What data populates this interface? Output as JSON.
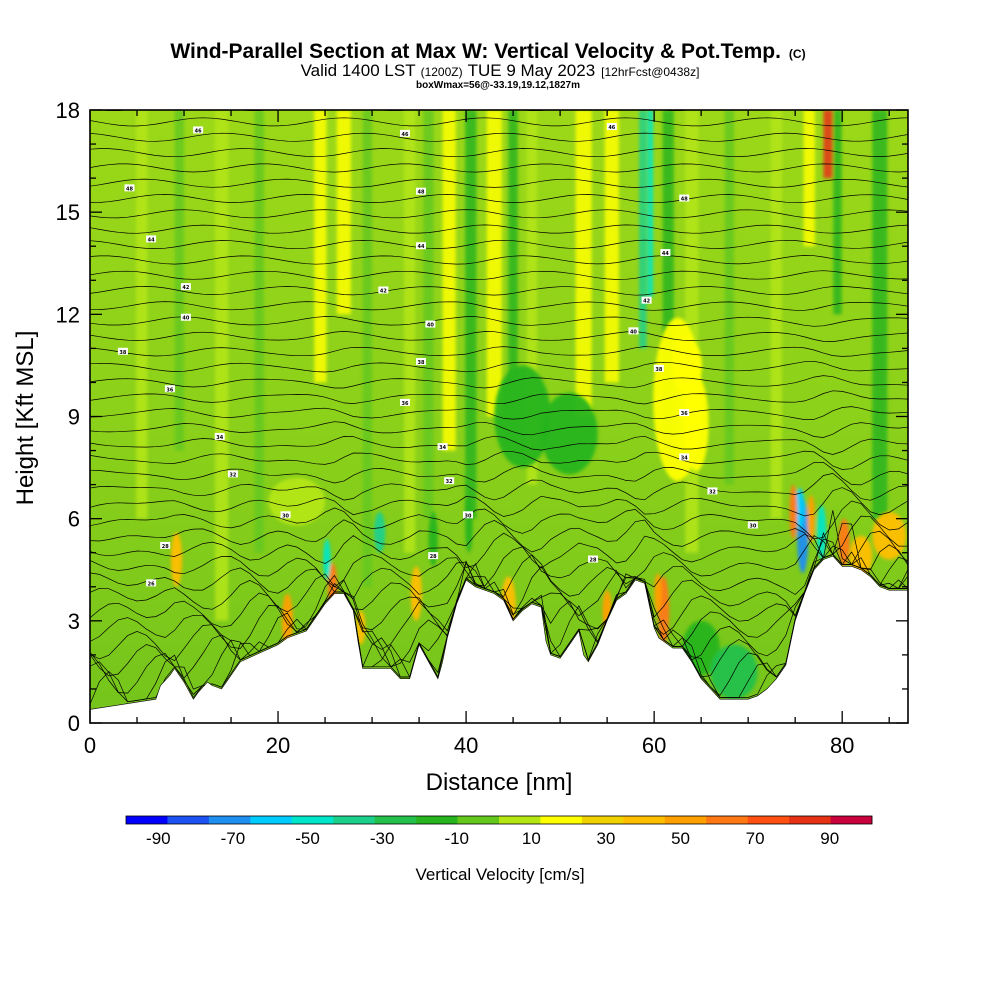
{
  "chart_data": {
    "type": "heatmap",
    "title": "Wind-Parallel Section at Max W: Vertical Velocity & Pot.Temp.",
    "title_mark": "(C)",
    "subtitle_main": "Valid 1400 LST",
    "subtitle_z": "(1200Z)",
    "subtitle_date": "TUE 9 May 2023",
    "subtitle_fcst": "[12hrFcst@0438z]",
    "subtitle_box": "boxWmax=56@-33.19,19.12,1827m",
    "xlabel": "Distance [nm]",
    "ylabel": "Height [Kft MSL]",
    "xlim": [
      0,
      87
    ],
    "ylim": [
      0,
      18
    ],
    "xticks": [
      0,
      20,
      40,
      60,
      80
    ],
    "yticks": [
      0,
      3,
      6,
      9,
      12,
      15,
      18
    ],
    "colorbar": {
      "label": "Vertical Velocity [cm/s]",
      "tick_labels": [
        "-90",
        "-70",
        "-50",
        "-30",
        "-10",
        "10",
        "30",
        "50",
        "70",
        "90"
      ],
      "colors": [
        "#0000ff",
        "#1c52f2",
        "#1e8ef0",
        "#00ccff",
        "#00e6c8",
        "#1cd08c",
        "#24c04c",
        "#28b41e",
        "#64c81c",
        "#b4e614",
        "#ffff00",
        "#f0d200",
        "#ffbe00",
        "#ffa000",
        "#ff7814",
        "#ff5014",
        "#e63214",
        "#c8003c"
      ]
    },
    "terrain": {
      "x": [
        0,
        7,
        7.5,
        8.5,
        9,
        10,
        11,
        11.5,
        12.5,
        13,
        14,
        15,
        16,
        20,
        21,
        23,
        24,
        25,
        26,
        27,
        28,
        28.5,
        29,
        30,
        32,
        33,
        34,
        34.5,
        35,
        36,
        37,
        37.5,
        38,
        39,
        40,
        41,
        43,
        44,
        45,
        46,
        47,
        48,
        48.5,
        49,
        50,
        51,
        52,
        52.5,
        53,
        54,
        55,
        56,
        57,
        58,
        59,
        60,
        60.5,
        61,
        62,
        63,
        64,
        65,
        66,
        67,
        68,
        69,
        70,
        71,
        72,
        73,
        74,
        75,
        76,
        77,
        78,
        79,
        80,
        81,
        82,
        83,
        84,
        85,
        87
      ],
      "y": [
        0.4,
        0.7,
        1.1,
        1.4,
        1.6,
        1.2,
        0.7,
        0.9,
        1.2,
        1.1,
        1.0,
        1.4,
        1.8,
        2.3,
        2.5,
        2.7,
        3.1,
        3.5,
        3.8,
        3.8,
        3.3,
        2.4,
        1.6,
        1.6,
        1.6,
        1.3,
        1.3,
        1.8,
        2.3,
        1.8,
        1.3,
        1.8,
        2.5,
        3.5,
        4.2,
        4.0,
        3.8,
        3.6,
        3.0,
        3.3,
        3.5,
        3.4,
        2.4,
        2.0,
        1.9,
        2.3,
        2.7,
        2.0,
        1.8,
        2.3,
        3.0,
        3.6,
        3.8,
        4.2,
        4.1,
        2.8,
        2.5,
        2.4,
        2.2,
        2.2,
        1.8,
        1.3,
        1.0,
        0.7,
        0.7,
        0.7,
        0.7,
        0.8,
        1.0,
        1.3,
        1.7,
        3.0,
        3.8,
        4.5,
        4.8,
        4.9,
        4.6,
        4.6,
        4.5,
        4.3,
        4.0,
        3.9,
        3.9
      ]
    },
    "potential_temperature_labels": [
      {
        "x": 11.5,
        "y": 17.4,
        "text": "46"
      },
      {
        "x": 33.5,
        "y": 17.3,
        "text": "46"
      },
      {
        "x": 55.5,
        "y": 17.5,
        "text": "46"
      },
      {
        "x": 4.2,
        "y": 15.7,
        "text": "48"
      },
      {
        "x": 35.2,
        "y": 15.6,
        "text": "48"
      },
      {
        "x": 63.2,
        "y": 15.4,
        "text": "48"
      },
      {
        "x": 6.5,
        "y": 14.2,
        "text": "44"
      },
      {
        "x": 35.2,
        "y": 14.0,
        "text": "44"
      },
      {
        "x": 61.2,
        "y": 13.8,
        "text": "44"
      },
      {
        "x": 10.2,
        "y": 12.8,
        "text": "42"
      },
      {
        "x": 31.2,
        "y": 12.7,
        "text": "42"
      },
      {
        "x": 59.2,
        "y": 12.4,
        "text": "42"
      },
      {
        "x": 10.2,
        "y": 11.9,
        "text": "40"
      },
      {
        "x": 36.2,
        "y": 11.7,
        "text": "40"
      },
      {
        "x": 57.8,
        "y": 11.5,
        "text": "40"
      },
      {
        "x": 3.5,
        "y": 10.9,
        "text": "38"
      },
      {
        "x": 35.2,
        "y": 10.6,
        "text": "38"
      },
      {
        "x": 60.5,
        "y": 10.4,
        "text": "38"
      },
      {
        "x": 8.5,
        "y": 9.8,
        "text": "36"
      },
      {
        "x": 33.5,
        "y": 9.4,
        "text": "36"
      },
      {
        "x": 63.2,
        "y": 9.1,
        "text": "36"
      },
      {
        "x": 13.8,
        "y": 8.4,
        "text": "34"
      },
      {
        "x": 37.5,
        "y": 8.1,
        "text": "34"
      },
      {
        "x": 63.2,
        "y": 7.8,
        "text": "34"
      },
      {
        "x": 15.2,
        "y": 7.3,
        "text": "32"
      },
      {
        "x": 38.2,
        "y": 7.1,
        "text": "32"
      },
      {
        "x": 66.2,
        "y": 6.8,
        "text": "32"
      },
      {
        "x": 20.8,
        "y": 6.1,
        "text": "30"
      },
      {
        "x": 40.2,
        "y": 6.1,
        "text": "30"
      },
      {
        "x": 70.5,
        "y": 5.8,
        "text": "30"
      },
      {
        "x": 8.0,
        "y": 5.2,
        "text": "28"
      },
      {
        "x": 36.5,
        "y": 4.9,
        "text": "28"
      },
      {
        "x": 53.5,
        "y": 4.8,
        "text": "28"
      },
      {
        "x": 6.5,
        "y": 4.1,
        "text": "26"
      }
    ]
  }
}
